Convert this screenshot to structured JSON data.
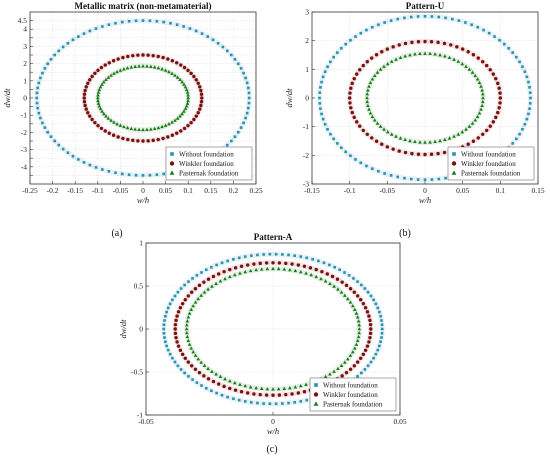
{
  "chart_data": [
    {
      "type": "scatter",
      "panel_label": "(a)",
      "title": "Metallic matrix (non-metamaterial)",
      "xlabel": "w/h",
      "ylabel": "dw/dt",
      "xlim": [
        -0.25,
        0.25
      ],
      "ylim": [
        -5,
        5
      ],
      "xticks": [
        -0.25,
        -0.2,
        -0.15,
        -0.1,
        -0.05,
        0,
        0.05,
        0.1,
        0.15,
        0.2,
        0.25
      ],
      "xtick_labels": [
        "-0.25",
        "-0.2",
        "-0.15",
        "-0.1",
        "-0.05",
        "0",
        "0.05",
        "0.1",
        "0.15",
        "0.2",
        "0.25"
      ],
      "yticks": [
        -4.5,
        -4,
        -3.5,
        -3,
        -2.5,
        -2,
        -1.5,
        -1,
        -0.5,
        0,
        0.5,
        1,
        1.5,
        2,
        2.5,
        3,
        3.5,
        4,
        4.5
      ],
      "ytick_labels": [
        "",
        "-4",
        "",
        "-3",
        "",
        "-2",
        "",
        "-1",
        "",
        "0",
        "",
        "1",
        "",
        "2",
        "",
        "3",
        "",
        "4",
        "4.5"
      ],
      "grid": true,
      "legend_position": "bottom-right",
      "series": [
        {
          "name": "Without foundation",
          "color": "#2a8fb0",
          "marker": "square",
          "rx": 0.235,
          "ry": 4.5,
          "n": 96
        },
        {
          "name": "Winkler foundation",
          "color": "#7a1010",
          "marker": "circle",
          "rx": 0.13,
          "ry": 2.5,
          "n": 72
        },
        {
          "name": "Pasternak foundation",
          "color": "#1a7a1a",
          "marker": "triangle",
          "rx": 0.1,
          "ry": 1.85,
          "n": 72
        }
      ]
    },
    {
      "type": "scatter",
      "panel_label": "(b)",
      "title": "Pattern-U",
      "xlabel": "w/h",
      "ylabel": "dw/dt",
      "xlim": [
        -0.15,
        0.15
      ],
      "ylim": [
        -3,
        3
      ],
      "xticks": [
        -0.15,
        -0.1,
        -0.05,
        0,
        0.05,
        0.1,
        0.15
      ],
      "xtick_labels": [
        "-0.15",
        "-0.1",
        "-0.05",
        "0",
        "0.05",
        "0.1",
        "0.15"
      ],
      "yticks": [
        -3,
        -2,
        -1,
        0,
        1,
        2,
        3
      ],
      "ytick_labels": [
        "-3",
        "-2",
        "-1",
        "0",
        "1",
        "2",
        "3"
      ],
      "grid": true,
      "legend_position": "bottom-right",
      "series": [
        {
          "name": "Without foundation",
          "color": "#2a8fb0",
          "marker": "square",
          "rx": 0.14,
          "ry": 2.85,
          "n": 96
        },
        {
          "name": "Winkler foundation",
          "color": "#7a1010",
          "marker": "circle",
          "rx": 0.1,
          "ry": 1.97,
          "n": 72
        },
        {
          "name": "Pasternak foundation",
          "color": "#1a7a1a",
          "marker": "triangle",
          "rx": 0.077,
          "ry": 1.55,
          "n": 72
        }
      ]
    },
    {
      "type": "scatter",
      "panel_label": "(c)",
      "title": "Pattern-A",
      "xlabel": "w/h",
      "ylabel": "dw/dt",
      "xlim": [
        -0.05,
        0.05
      ],
      "ylim": [
        -1,
        1
      ],
      "xticks": [
        -0.05,
        0,
        0.05
      ],
      "xtick_labels": [
        "-0.05",
        "0",
        "0.05"
      ],
      "yticks": [
        -1,
        -0.5,
        0,
        0.5,
        1
      ],
      "ytick_labels": [
        "-1",
        "-0.5",
        "0",
        "0.5",
        "1"
      ],
      "grid": true,
      "legend_position": "bottom-right",
      "series": [
        {
          "name": "Without foundation",
          "color": "#2a8fb0",
          "marker": "square",
          "rx": 0.043,
          "ry": 0.87,
          "n": 110
        },
        {
          "name": "Winkler foundation",
          "color": "#7a1010",
          "marker": "circle",
          "rx": 0.0385,
          "ry": 0.77,
          "n": 96
        },
        {
          "name": "Pasternak foundation",
          "color": "#1a7a1a",
          "marker": "triangle",
          "rx": 0.034,
          "ry": 0.7,
          "n": 96
        }
      ]
    }
  ]
}
